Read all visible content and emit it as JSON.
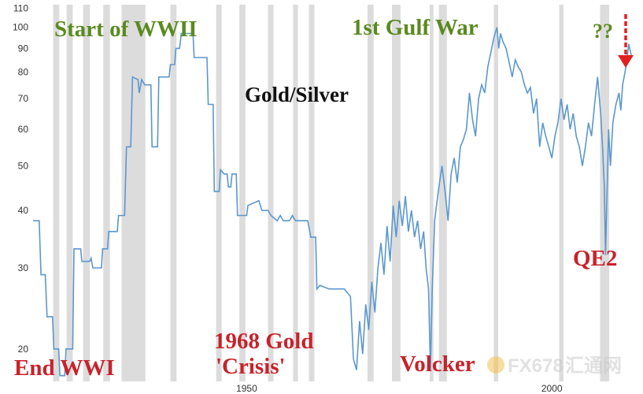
{
  "chart_data": {
    "type": "line",
    "title": "Gold/Silver",
    "yscale": "log",
    "ylim": [
      17,
      112
    ],
    "xlim": [
      1915,
      2013
    ],
    "yticks": [
      20,
      30,
      40,
      50,
      60,
      70,
      80,
      90,
      100,
      110
    ],
    "xticks": [
      1950,
      2000
    ],
    "series": [
      {
        "values": [
          [
            1915,
            38
          ],
          [
            1916,
            38
          ],
          [
            1916.3,
            29
          ],
          [
            1917,
            29
          ],
          [
            1917.3,
            23.5
          ],
          [
            1918.2,
            23.5
          ],
          [
            1918.4,
            20
          ],
          [
            1919.2,
            20
          ],
          [
            1919.4,
            17.5
          ],
          [
            1920.2,
            17.5
          ],
          [
            1920.4,
            20
          ],
          [
            1921.5,
            20
          ],
          [
            1921.7,
            33
          ],
          [
            1922.8,
            33
          ],
          [
            1923,
            31
          ],
          [
            1924.3,
            31
          ],
          [
            1924.5,
            31.5
          ],
          [
            1924.8,
            30
          ],
          [
            1926.2,
            30
          ],
          [
            1926.4,
            33
          ],
          [
            1927.2,
            33
          ],
          [
            1927.4,
            36
          ],
          [
            1928.8,
            36
          ],
          [
            1929,
            39
          ],
          [
            1930,
            39
          ],
          [
            1930.3,
            55
          ],
          [
            1931,
            55
          ],
          [
            1931.3,
            78
          ],
          [
            1932.2,
            77
          ],
          [
            1932.4,
            72
          ],
          [
            1932.8,
            77
          ],
          [
            1933.3,
            75
          ],
          [
            1934.3,
            75
          ],
          [
            1934.5,
            55
          ],
          [
            1935.4,
            55
          ],
          [
            1935.6,
            78
          ],
          [
            1937.3,
            78
          ],
          [
            1937.5,
            83
          ],
          [
            1938.2,
            83
          ],
          [
            1938.4,
            90
          ],
          [
            1939,
            90
          ],
          [
            1939.3,
            97
          ],
          [
            1941.2,
            97
          ],
          [
            1941.4,
            86
          ],
          [
            1943.5,
            86
          ],
          [
            1943.7,
            68
          ],
          [
            1944.5,
            68
          ],
          [
            1944.7,
            44
          ],
          [
            1945.5,
            44
          ],
          [
            1945.7,
            49
          ],
          [
            1946.3,
            48
          ],
          [
            1946.8,
            48
          ],
          [
            1947,
            45
          ],
          [
            1947.4,
            45
          ],
          [
            1947.6,
            48
          ],
          [
            1948.3,
            48
          ],
          [
            1948.5,
            39
          ],
          [
            1950,
            39
          ],
          [
            1950.2,
            41
          ],
          [
            1952,
            42
          ],
          [
            1952.5,
            40
          ],
          [
            1953.5,
            40
          ],
          [
            1954,
            39
          ],
          [
            1955,
            38
          ],
          [
            1955.5,
            39
          ],
          [
            1956,
            38
          ],
          [
            1957,
            38
          ],
          [
            1957.5,
            39
          ],
          [
            1958,
            38
          ],
          [
            1960,
            38
          ],
          [
            1960.5,
            35
          ],
          [
            1961.3,
            35
          ],
          [
            1961.5,
            27
          ],
          [
            1962,
            27.5
          ],
          [
            1963.5,
            27
          ],
          [
            1964.5,
            27
          ],
          [
            1965.3,
            27
          ],
          [
            1966,
            27
          ],
          [
            1967,
            26
          ],
          [
            1967.5,
            19
          ],
          [
            1968,
            18
          ],
          [
            1968.5,
            23
          ],
          [
            1969,
            19.5
          ],
          [
            1969.5,
            25
          ],
          [
            1970,
            22
          ],
          [
            1970.5,
            28
          ],
          [
            1971,
            24
          ],
          [
            1971.5,
            30
          ],
          [
            1972,
            34
          ],
          [
            1972.5,
            29
          ],
          [
            1973,
            37
          ],
          [
            1973.5,
            31
          ],
          [
            1974,
            41
          ],
          [
            1974.5,
            35
          ],
          [
            1975,
            42
          ],
          [
            1975.5,
            37
          ],
          [
            1976,
            43
          ],
          [
            1976.5,
            36
          ],
          [
            1977,
            40
          ],
          [
            1977.5,
            35
          ],
          [
            1978,
            38
          ],
          [
            1978.5,
            33
          ],
          [
            1979,
            36
          ],
          [
            1979.4,
            30
          ],
          [
            1979.8,
            27
          ],
          [
            1980.1,
            18
          ],
          [
            1980.4,
            27
          ],
          [
            1980.8,
            38
          ],
          [
            1981,
            40
          ],
          [
            1981.5,
            45
          ],
          [
            1982,
            50
          ],
          [
            1982.5,
            44
          ],
          [
            1983,
            38
          ],
          [
            1983.5,
            48
          ],
          [
            1984,
            52
          ],
          [
            1984.5,
            46
          ],
          [
            1985,
            55
          ],
          [
            1985.5,
            57
          ],
          [
            1986,
            60
          ],
          [
            1986.5,
            72
          ],
          [
            1987,
            63
          ],
          [
            1987.5,
            58
          ],
          [
            1988,
            70
          ],
          [
            1988.5,
            75
          ],
          [
            1989,
            72
          ],
          [
            1989.5,
            82
          ],
          [
            1990,
            88
          ],
          [
            1990.5,
            95
          ],
          [
            1991,
            100
          ],
          [
            1991.3,
            90
          ],
          [
            1991.6,
            97
          ],
          [
            1992,
            93
          ],
          [
            1992.5,
            90
          ],
          [
            1993,
            84
          ],
          [
            1993.5,
            78
          ],
          [
            1994,
            85
          ],
          [
            1994.5,
            82
          ],
          [
            1995,
            80
          ],
          [
            1995.5,
            75
          ],
          [
            1996,
            72
          ],
          [
            1996.5,
            74
          ],
          [
            1997,
            65
          ],
          [
            1997.5,
            70
          ],
          [
            1998,
            55
          ],
          [
            1998.5,
            62
          ],
          [
            1999,
            58
          ],
          [
            1999.5,
            55
          ],
          [
            2000,
            52
          ],
          [
            2000.5,
            58
          ],
          [
            2001,
            62
          ],
          [
            2001.5,
            70
          ],
          [
            2002,
            63
          ],
          [
            2002.5,
            68
          ],
          [
            2003,
            60
          ],
          [
            2003.5,
            65
          ],
          [
            2004,
            58
          ],
          [
            2004.5,
            55
          ],
          [
            2005,
            50
          ],
          [
            2005.5,
            55
          ],
          [
            2006,
            62
          ],
          [
            2006.5,
            58
          ],
          [
            2007,
            68
          ],
          [
            2007.5,
            78
          ],
          [
            2008,
            65
          ],
          [
            2008.3,
            55
          ],
          [
            2008.6,
            45
          ],
          [
            2008.8,
            32
          ],
          [
            2009,
            42
          ],
          [
            2009.3,
            60
          ],
          [
            2009.6,
            50
          ],
          [
            2010,
            62
          ],
          [
            2010.5,
            68
          ],
          [
            2011,
            72
          ],
          [
            2011.3,
            66
          ],
          [
            2011.6,
            75
          ],
          [
            2012,
            80
          ],
          [
            2012.3,
            85
          ],
          [
            2012.6,
            92
          ],
          [
            2013,
            87
          ]
        ]
      }
    ],
    "shaded_ranges": [
      [
        1918.3,
        1919.3
      ],
      [
        1920.5,
        1921.5
      ],
      [
        1923.2,
        1924.3
      ],
      [
        1926.5,
        1927.6
      ],
      [
        1929.5,
        1933.4
      ],
      [
        1937.5,
        1938.5
      ],
      [
        1945,
        1945.9
      ],
      [
        1948.8,
        1949.8
      ],
      [
        1953.5,
        1954.4
      ],
      [
        1957.6,
        1958.4
      ],
      [
        1960.2,
        1961.1
      ],
      [
        1969.8,
        1970.8
      ],
      [
        1973.8,
        1975.2
      ],
      [
        1980,
        1980.6
      ],
      [
        1981.5,
        1982.8
      ],
      [
        1990.5,
        1991.2
      ],
      [
        2001.2,
        2001.9
      ],
      [
        2007.9,
        2009.4
      ]
    ],
    "annotations": [
      {
        "text": "Start of WWII",
        "color": "#5a8a1f"
      },
      {
        "text": "1st Gulf War",
        "color": "#5a8a1f"
      },
      {
        "text": "??",
        "color": "#5a8a1f"
      },
      {
        "text": "Gold/Silver",
        "color": "#111111"
      },
      {
        "text": "End WWI",
        "color": "#c8222a"
      },
      {
        "text": "1968 Gold",
        "color": "#c8222a"
      },
      {
        "text": "'Crisis'",
        "color": "#c8222a"
      },
      {
        "text": "Volcker",
        "color": "#c8222a"
      },
      {
        "text": "QE2",
        "color": "#c8222a"
      }
    ],
    "line_color": "#5b97cf",
    "shade_color": "#dcdcdc",
    "arrow_color": "#e02020"
  },
  "watermark": {
    "text": "FX678",
    "subtext": "汇通网"
  }
}
